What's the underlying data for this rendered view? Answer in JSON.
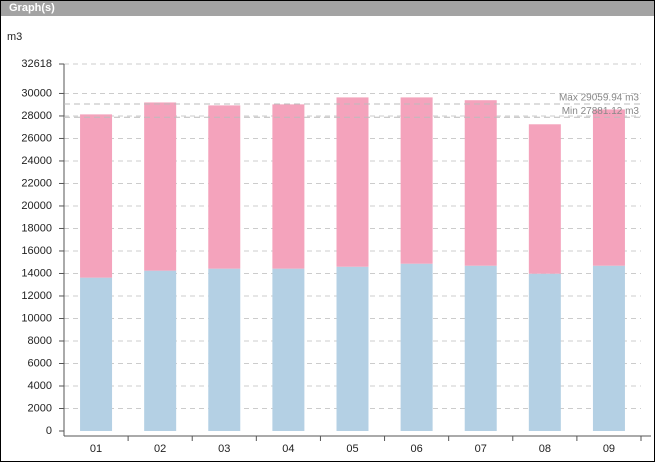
{
  "header": "Graph(s)",
  "chart_data": {
    "type": "stacked-bar",
    "y_label": "m3",
    "categories": [
      "01",
      "02",
      "03",
      "04",
      "05",
      "06",
      "07",
      "08",
      "09"
    ],
    "series": [
      {
        "color": "#b4d0e4",
        "values": [
          13630,
          14250,
          14430,
          14430,
          14600,
          14870,
          14690,
          13980,
          14690
        ]
      },
      {
        "color": "#f4a3bc",
        "values": [
          14510,
          14950,
          14510,
          14600,
          15050,
          14780,
          14710,
          13280,
          13890
        ]
      }
    ],
    "ylim": [
      0,
      32618
    ],
    "yticks": [
      0,
      2000,
      4000,
      6000,
      8000,
      10000,
      12000,
      14000,
      16000,
      18000,
      20000,
      22000,
      24000,
      26000,
      28000,
      30000,
      32618
    ],
    "grid": true,
    "reference_lines": [
      {
        "value": 29059.94,
        "label": "Max 29059.94 m3"
      },
      {
        "value": 27881.12,
        "label": "Min 27881.12 m3"
      }
    ]
  }
}
